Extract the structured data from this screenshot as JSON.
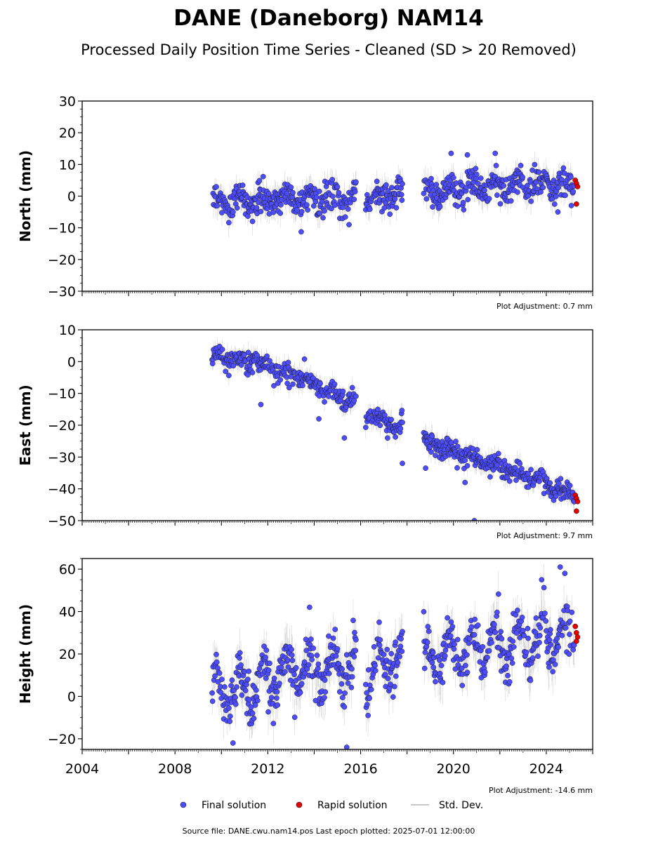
{
  "figure": {
    "title": "DANE (Daneborg) NAM14",
    "subtitle": "Processed Daily Position Time Series - Cleaned (SD > 20 Removed)",
    "footer": "Source file: DANE.cwu.nam14.pos  Last epoch plotted: 2025-07-01 12:00:00"
  },
  "legend": {
    "final_label": "Final solution",
    "rapid_label": "Rapid solution",
    "std_label": "Std. Dev."
  },
  "colors": {
    "final": "#4d4dff",
    "rapid": "#e60000",
    "std": "#b0b0b0",
    "marker_edge": "#1a1a1a"
  },
  "chart_data": [
    {
      "type": "scatter",
      "ylabel": "North (mm)",
      "ylim": [
        -30,
        30
      ],
      "yticks": [
        "30",
        "20",
        "10",
        "0",
        "−10",
        "−20",
        "−30"
      ],
      "xlim": [
        2004,
        2026
      ],
      "adjustment": "Plot Adjustment: 0.7 mm",
      "data_start": 2009.6,
      "gaps": [
        [
          2015.8,
          2016.2
        ],
        [
          2017.8,
          2018.7
        ]
      ],
      "trend": [
        [
          2009.6,
          -2
        ],
        [
          2015.8,
          0
        ],
        [
          2016.2,
          0
        ],
        [
          2017.8,
          0
        ],
        [
          2018.7,
          1
        ],
        [
          2021,
          3
        ],
        [
          2025.3,
          4
        ]
      ],
      "seasonal_amp": 2,
      "noise": 2.2,
      "outliers": [
        [
          2015.5,
          -9
        ],
        [
          2019.9,
          13.5
        ],
        [
          2020.6,
          13
        ],
        [
          2021.8,
          13.5
        ],
        [
          2024.5,
          -5
        ]
      ],
      "rapid": [
        [
          2025.25,
          5
        ],
        [
          2025.3,
          4
        ],
        [
          2025.35,
          3
        ],
        [
          2025.3,
          -2.5
        ]
      ]
    },
    {
      "type": "scatter",
      "ylabel": "East (mm)",
      "ylim": [
        -50,
        10
      ],
      "yticks": [
        "10",
        "0",
        "−10",
        "−20",
        "−30",
        "−40",
        "−50"
      ],
      "xlim": [
        2004,
        2026
      ],
      "adjustment": "Plot Adjustment: 9.7 mm",
      "data_start": 2009.6,
      "gaps": [
        [
          2015.8,
          2016.2
        ],
        [
          2017.8,
          2018.7
        ]
      ],
      "trend": [
        [
          2009.6,
          2
        ],
        [
          2011.5,
          0
        ],
        [
          2013,
          -4
        ],
        [
          2015.8,
          -13
        ],
        [
          2016.2,
          -17
        ],
        [
          2017.8,
          -21
        ],
        [
          2018.7,
          -25
        ],
        [
          2020,
          -28
        ],
        [
          2022,
          -33
        ],
        [
          2025.3,
          -42
        ]
      ],
      "seasonal_amp": 1,
      "noise": 1.6,
      "outliers": [
        [
          2011.7,
          -13.5
        ],
        [
          2014.2,
          -18
        ],
        [
          2015.3,
          -24
        ],
        [
          2017.8,
          -32
        ],
        [
          2018.8,
          -33.5
        ],
        [
          2020.5,
          -38
        ],
        [
          2020.9,
          -50
        ]
      ],
      "rapid": [
        [
          2025.25,
          -42
        ],
        [
          2025.3,
          -43
        ],
        [
          2025.35,
          -44
        ],
        [
          2025.3,
          -47
        ]
      ]
    },
    {
      "type": "scatter",
      "ylabel": "Height (mm)",
      "ylim": [
        -25,
        65
      ],
      "yticks": [
        "60",
        "40",
        "20",
        "0",
        "−20"
      ],
      "xlim": [
        2004,
        2026
      ],
      "adjustment": "Plot Adjustment: -14.6 mm",
      "data_start": 2009.6,
      "gaps": [
        [
          2015.8,
          2016.2
        ],
        [
          2017.8,
          2018.7
        ]
      ],
      "trend": [
        [
          2009.6,
          0
        ],
        [
          2011,
          4
        ],
        [
          2013,
          12
        ],
        [
          2015.8,
          14
        ],
        [
          2016.2,
          12
        ],
        [
          2017.8,
          18
        ],
        [
          2018.7,
          17
        ],
        [
          2021,
          22
        ],
        [
          2025.3,
          30
        ]
      ],
      "seasonal_amp": 9,
      "noise": 5.5,
      "outliers": [
        [
          2010.5,
          -22
        ],
        [
          2013.8,
          42
        ],
        [
          2015.4,
          -24
        ],
        [
          2023.8,
          55
        ],
        [
          2024.6,
          61
        ],
        [
          2024.8,
          58
        ]
      ],
      "rapid": [
        [
          2025.25,
          33
        ],
        [
          2025.3,
          30
        ],
        [
          2025.35,
          28
        ],
        [
          2025.3,
          26
        ]
      ]
    }
  ],
  "xaxis": {
    "ticks": [
      "2004",
      "2008",
      "2012",
      "2016",
      "2020",
      "2024"
    ]
  }
}
